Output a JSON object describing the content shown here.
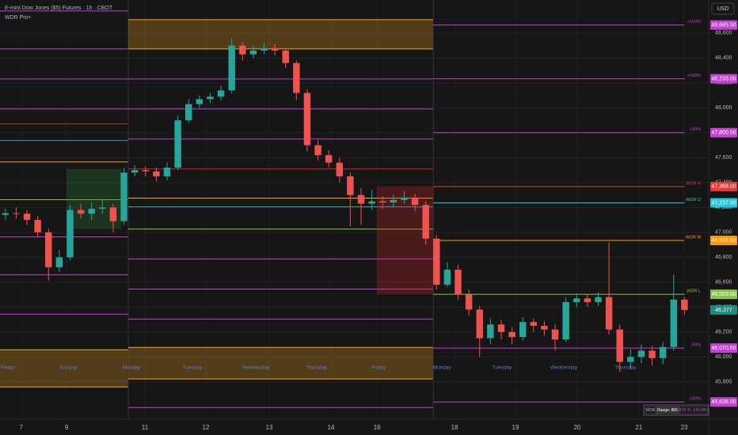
{
  "chart_data": {
    "type": "candlestick",
    "title": "E-mini Dow Jones ($5) Futures · 1h · CBOT",
    "subtitle": "WDR Pro+",
    "currency": "USD",
    "info": [
      "WDR",
      "Range: 865",
      "ATR %: 145.89%"
    ],
    "xlim": [
      0,
      263
    ],
    "ylim": [
      45500,
      48866
    ],
    "xticks": [
      {
        "value": 7.9,
        "label": "7"
      },
      {
        "value": 24.7,
        "label": "9"
      },
      {
        "value": 53.8,
        "label": "11"
      },
      {
        "value": 76.4,
        "label": "12"
      },
      {
        "value": 99.9,
        "label": "13"
      },
      {
        "value": 122.8,
        "label": "14"
      },
      {
        "value": 139.9,
        "label": "16"
      },
      {
        "value": 168.7,
        "label": "18"
      },
      {
        "value": 191.3,
        "label": "19"
      },
      {
        "value": 214.2,
        "label": "20"
      },
      {
        "value": 237.1,
        "label": "21"
      },
      {
        "value": 253.9,
        "label": "23"
      }
    ],
    "yticks": [
      {
        "value": 45800,
        "label": "45,800"
      },
      {
        "value": 46000,
        "label": "46,000"
      },
      {
        "value": 46200,
        "label": "46,200"
      },
      {
        "value": 46400,
        "label": "46,400"
      },
      {
        "value": 46600,
        "label": "46,600"
      },
      {
        "value": 46800,
        "label": "46,800"
      },
      {
        "value": 47000,
        "label": "47,000"
      },
      {
        "value": 47200,
        "label": "47,200"
      },
      {
        "value": 47400,
        "label": "47,400"
      },
      {
        "value": 47600,
        "label": "47,600"
      },
      {
        "value": 47800,
        "label": "47,800"
      },
      {
        "value": 48000,
        "label": "48,000"
      },
      {
        "value": 48200,
        "label": "48,200"
      },
      {
        "value": 48400,
        "label": "48,400"
      },
      {
        "value": 48600,
        "label": "48,600"
      }
    ],
    "grid": true,
    "up_color": "#26a69a",
    "down_color": "#ef5350",
    "x": [
      2,
      6,
      10,
      14,
      18,
      22,
      26,
      30,
      34,
      38,
      42,
      46,
      50,
      54,
      58,
      62,
      66,
      70,
      74,
      78,
      82,
      86,
      90,
      94,
      98,
      102,
      106,
      110,
      114,
      118,
      122,
      126,
      130,
      134,
      138,
      142,
      146,
      150,
      154,
      158,
      162,
      166,
      170,
      174,
      178,
      182,
      186,
      190,
      194,
      198,
      202,
      206,
      210,
      214,
      218,
      222,
      226,
      230,
      234,
      238,
      242,
      246,
      250,
      254
    ],
    "open": [
      47140,
      47154,
      47150,
      47100,
      47000,
      46720,
      46800,
      47180,
      47150,
      47190,
      47200,
      47090,
      47480,
      47500,
      47490,
      47450,
      47520,
      47900,
      48030,
      48070,
      48090,
      48140,
      48500,
      48430,
      48460,
      48480,
      48460,
      48360,
      48120,
      47700,
      47620,
      47560,
      47450,
      47300,
      47230,
      47250,
      47240,
      47260,
      47280,
      47220,
      46950,
      46580,
      46700,
      46500,
      46380,
      46150,
      46260,
      46200,
      46160,
      46280,
      46250,
      46220,
      46140,
      46440,
      46470,
      46440,
      46480,
      46220,
      45960,
      46000,
      46050,
      45990,
      46080,
      46460
    ],
    "high": [
      47190,
      47200,
      47180,
      47130,
      47030,
      46860,
      47220,
      47230,
      47240,
      47260,
      47230,
      47520,
      47540,
      47530,
      47520,
      47560,
      47940,
      48070,
      48100,
      48120,
      48180,
      48560,
      48530,
      48500,
      48520,
      48510,
      48480,
      48380,
      48150,
      47740,
      47660,
      47600,
      47480,
      47360,
      47340,
      47290,
      47300,
      47330,
      47310,
      47250,
      46980,
      46760,
      46740,
      46540,
      46410,
      46310,
      46300,
      46240,
      46320,
      46310,
      46290,
      46260,
      46480,
      46510,
      46500,
      46520,
      46920,
      46260,
      46060,
      46100,
      46090,
      46120,
      46660,
      46480
    ],
    "low": [
      47100,
      47110,
      47060,
      46960,
      46615,
      46680,
      46780,
      47110,
      47100,
      47150,
      47000,
      47060,
      47450,
      47450,
      47410,
      47420,
      47500,
      47880,
      48000,
      48040,
      48060,
      48120,
      48380,
      48400,
      48430,
      48420,
      48320,
      48060,
      47650,
      47580,
      47520,
      47400,
      47050,
      47060,
      47180,
      47190,
      47200,
      47230,
      47170,
      46900,
      46540,
      46560,
      46460,
      46330,
      46000,
      46100,
      46140,
      46100,
      46130,
      46200,
      46170,
      46050,
      46120,
      46400,
      46400,
      46410,
      46180,
      45880,
      45900,
      45950,
      45930,
      45940,
      46050,
      46340
    ],
    "close": [
      47154,
      47150,
      47100,
      47000,
      46720,
      46800,
      47180,
      47150,
      47190,
      47200,
      47090,
      47480,
      47500,
      47490,
      47450,
      47520,
      47900,
      48030,
      48070,
      48090,
      48140,
      48500,
      48430,
      48460,
      48480,
      48460,
      48360,
      48120,
      47700,
      47620,
      47560,
      47450,
      47300,
      47230,
      47250,
      47240,
      47260,
      47280,
      47220,
      46950,
      46580,
      46700,
      46500,
      46380,
      46150,
      46260,
      46200,
      46160,
      46280,
      46250,
      46220,
      46140,
      46440,
      46470,
      46440,
      46480,
      46220,
      45960,
      46000,
      46050,
      45990,
      46080,
      46460,
      46377
    ],
    "last_label": "46,377",
    "weeks": [
      {
        "x": [
          0,
          47.6
        ],
        "levels": [
          {
            "value": 48778,
            "color": "#c341d3"
          },
          {
            "value": 48473,
            "color": "#c341d3"
          },
          {
            "value": 48232,
            "color": "#c341d3"
          },
          {
            "value": 47991,
            "color": "#c341d3"
          },
          {
            "value": 47871,
            "color": "#c62828"
          },
          {
            "value": 47738,
            "color": "#26a6b8"
          },
          {
            "value": 47566,
            "color": "#f5a623"
          },
          {
            "value": 47262,
            "color": "#8bc34a"
          },
          {
            "value": 46964,
            "color": "#c341d3"
          },
          {
            "value": 46660,
            "color": "#c341d3"
          },
          {
            "value": 46343,
            "color": "#c341d3"
          }
        ],
        "bands": [
          {
            "y": [
              45759,
              46057
            ],
            "color": "#f5a623"
          }
        ]
      },
      {
        "x": [
          47.6,
          160.8
        ],
        "levels": [
          {
            "value": 48232,
            "color": "#c341d3"
          },
          {
            "value": 47991,
            "color": "#c341d3"
          },
          {
            "value": 47750,
            "color": "#c341d3"
          },
          {
            "value": 47509,
            "color": "#c62828"
          },
          {
            "value": 47275,
            "color": "#f5a623"
          },
          {
            "value": 47205,
            "color": "#26a6b8"
          },
          {
            "value": 47027,
            "color": "#8bc34a"
          },
          {
            "value": 46786,
            "color": "#c341d3"
          },
          {
            "value": 46545,
            "color": "#c341d3"
          },
          {
            "value": 46304,
            "color": "#c341d3"
          },
          {
            "value": 45594,
            "color": "#c341d3"
          }
        ],
        "bands": [
          {
            "y": [
              48473,
              48708
            ],
            "color": "#f5a623"
          },
          {
            "y": [
              45823,
              46076
            ],
            "color": "#f5a623"
          }
        ]
      },
      {
        "x": [
          160.8,
          254
        ],
        "levels": [
          {
            "value": 48665.5,
            "color": "#c341d3",
            "label": "+150%",
            "value_label": "48,665.50"
          },
          {
            "value": 48233,
            "color": "#c341d3",
            "label": "+100%",
            "value_label": "48,233.00"
          },
          {
            "value": 47800.5,
            "color": "#c341d3",
            "label": "+50%",
            "value_label": "47,800.50"
          },
          {
            "value": 47368,
            "color": "#e53935",
            "label": "WDR H",
            "value_label": "47,368.00"
          },
          {
            "value": 47237,
            "color": "#26c6da",
            "label": "WDR O",
            "value_label": "47,237.00"
          },
          {
            "value": 46935.5,
            "color": "#ff9800",
            "label": "WDR M",
            "value_label": "46,935.50"
          },
          {
            "value": 46503,
            "color": "#8bc34a",
            "label": "WDR L",
            "value_label": "46,503.00"
          },
          {
            "value": 46070.5,
            "color": "#c341d3",
            "label": "-50%",
            "value_label": "46,070.50"
          },
          {
            "value": 45638,
            "color": "#c341d3",
            "label": "-100%",
            "value_label": "45,638.00"
          }
        ],
        "bands": []
      }
    ],
    "range_boxes": [
      {
        "x": [
          24.7,
          45
        ],
        "y": [
          47027,
          47509
        ],
        "color": "#2e7d32"
      },
      {
        "x": [
          139.9,
          160.8
        ],
        "y": [
          46503,
          47370
        ],
        "color": "#c62828"
      }
    ],
    "sessions": [
      {
        "x": 2.9,
        "label": "Friday"
      },
      {
        "x": 25.3,
        "label": "Sunday"
      },
      {
        "x": 48.8,
        "label": "Monday"
      },
      {
        "x": 71.4,
        "label": "Tuesday"
      },
      {
        "x": 95,
        "label": "Wednesday"
      },
      {
        "x": 117.5,
        "label": "Thursday"
      },
      {
        "x": 140.5,
        "label": "Friday"
      },
      {
        "x": 164,
        "label": "Monday"
      },
      {
        "x": 186.3,
        "label": "Tuesday"
      },
      {
        "x": 209.2,
        "label": "Wednesday"
      },
      {
        "x": 232.1,
        "label": "Thursday"
      }
    ]
  }
}
